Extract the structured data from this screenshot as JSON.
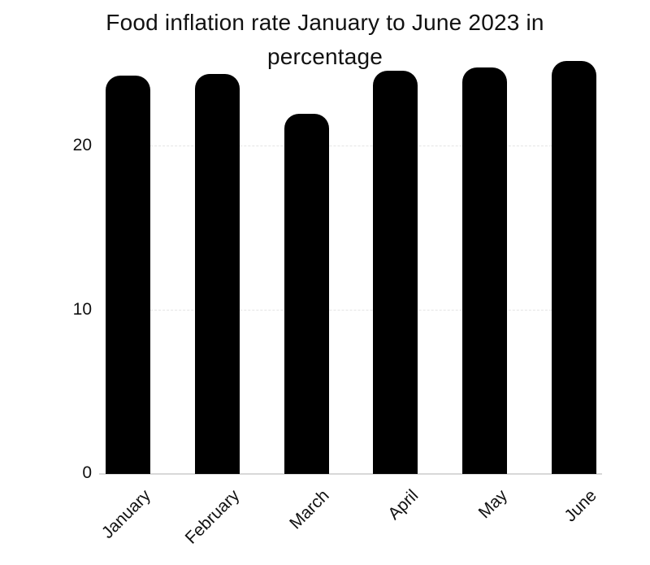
{
  "chart_data": {
    "type": "bar",
    "title": "Food inflation rate January to June 2023 in percentage",
    "categories": [
      "January",
      "February",
      "March",
      "April",
      "May",
      "June"
    ],
    "values": [
      24.3,
      24.4,
      22.0,
      24.6,
      24.8,
      25.2
    ],
    "xlabel": "",
    "ylabel": "",
    "y_ticks": [
      0,
      10,
      20
    ],
    "ylim": [
      0,
      26
    ],
    "grid": true,
    "legend": "none",
    "bar_color": "#000000",
    "grid_color": "#e4e4e4",
    "baseline_color": "#d8d8d8",
    "text_color": "#111111",
    "background_color": "#ffffff"
  }
}
